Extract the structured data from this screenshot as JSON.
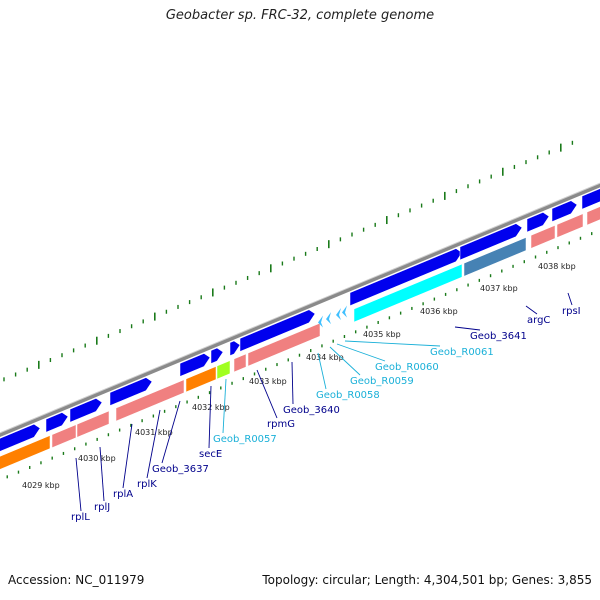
{
  "title": "Geobacter sp. FRC-32, complete genome",
  "footer": {
    "accession": "Accession: NC_011979",
    "stats": "Topology: circular; Length: 4,304,501 bp; Genes: 3,855"
  },
  "colors": {
    "backbone": "#8a8a8a",
    "cds_forward": "#0000ee",
    "cds_reverse": "#f08080",
    "cds_highlight_orange": "#ff8000",
    "cds_highlight_green": "#a0ff20",
    "rna": "#00ffff",
    "rna_arrow": "#40c0ff",
    "cds_steel": "#4682b4",
    "tick": "#1a7a1a",
    "label_dark": "#00008b",
    "label_light": "#1ab0d8"
  },
  "scale": {
    "ticks": [
      "4029 kbp",
      "4030 kbp",
      "4031 kbp",
      "4032 kbp",
      "4033 kbp",
      "4034 kbp",
      "4035 kbp",
      "4036 kbp",
      "4037 kbp",
      "4038 kbp"
    ]
  },
  "genes": [
    {
      "name": "rplL",
      "color": "dark"
    },
    {
      "name": "rplJ",
      "color": "dark"
    },
    {
      "name": "rplA",
      "color": "dark"
    },
    {
      "name": "rplK",
      "color": "dark"
    },
    {
      "name": "Geob_3637",
      "color": "dark"
    },
    {
      "name": "secE",
      "color": "dark"
    },
    {
      "name": "Geob_R0057",
      "color": "light"
    },
    {
      "name": "rpmG",
      "color": "dark"
    },
    {
      "name": "Geob_3640",
      "color": "dark"
    },
    {
      "name": "Geob_R0058",
      "color": "light"
    },
    {
      "name": "Geob_R0059",
      "color": "light"
    },
    {
      "name": "Geob_R0060",
      "color": "light"
    },
    {
      "name": "Geob_R0061",
      "color": "light"
    },
    {
      "name": "Geob_3641",
      "color": "dark"
    },
    {
      "name": "argC",
      "color": "dark"
    },
    {
      "name": "rpsI",
      "color": "dark"
    }
  ]
}
